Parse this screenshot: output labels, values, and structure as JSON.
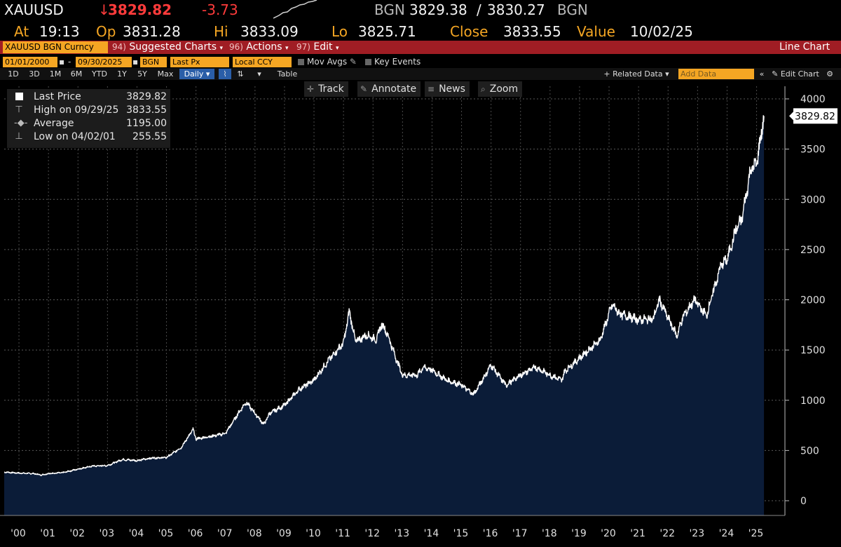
{
  "header": {
    "ticker": "XAUUSD",
    "last_arrow": "↓",
    "last": "3829.82",
    "change": "-3.73",
    "bgn_left": "BGN",
    "bid": "3829.38",
    "slash": "/",
    "ask": "3830.27",
    "bgn_right": "BGN",
    "at_label": "At",
    "at_value": "19:13",
    "op_label": "Op",
    "op_value": "3831.28",
    "hi_label": "Hi",
    "hi_value": "3833.09",
    "lo_label": "Lo",
    "lo_value": "3825.71",
    "close_label": "Close",
    "close_value": "3833.55",
    "value_label": "Value",
    "value_date": "10/02/25"
  },
  "menu": {
    "ticker_field": "XAUUSD BGN Curncy",
    "suggested_num": "94)",
    "suggested": "Suggested Charts",
    "actions_num": "96)",
    "actions": "Actions",
    "edit_num": "97)",
    "edit": "Edit",
    "chart_type": "Line Chart"
  },
  "controls": {
    "start_date": "01/01/2000",
    "dash": "-",
    "end_date": "09/30/2025",
    "source": "BGN",
    "field": "Last Px",
    "currency": "Local CCY",
    "mov_avgs": "Mov Avgs",
    "key_events": "Key Events"
  },
  "range": {
    "buttons": [
      "1D",
      "3D",
      "1M",
      "6M",
      "YTD",
      "1Y",
      "5Y",
      "Max"
    ],
    "frequency": "Daily ▾",
    "table": "Table",
    "related": "+ Related Data ▾",
    "add_data_placeholder": "Add Data",
    "edit_chart": "Edit Chart"
  },
  "tools": {
    "track": "Track",
    "annotate": "Annotate",
    "news": "News",
    "zoom": "Zoom"
  },
  "legend": {
    "last_label": "Last Price",
    "last_value": "3829.82",
    "high_label": "High on 09/29/25",
    "high_value": "3833.55",
    "avg_label": "Average",
    "avg_value": "1195.00",
    "low_label": "Low on 04/02/01",
    "low_value": "255.55"
  },
  "colors": {
    "amber": "#f5a623",
    "down_red": "#ff3b3b",
    "menu_red": "#a01d24",
    "area_fill": "#0b1c38",
    "line": "#ffffff"
  },
  "chart_data": {
    "type": "area",
    "grid": true,
    "ylim": [
      0,
      4000
    ],
    "y_ticks": [
      0,
      500,
      1000,
      1500,
      2000,
      2500,
      3000,
      3500,
      4000
    ],
    "x_ticks": [
      "'00",
      "'01",
      "'02",
      "'03",
      "'04",
      "'05",
      "'06",
      "'07",
      "'08",
      "'09",
      "'10",
      "'11",
      "'12",
      "'13",
      "'14",
      "'15",
      "'16",
      "'17",
      "'18",
      "'19",
      "'20",
      "'21",
      "'22",
      "'23",
      "'24",
      "'25"
    ],
    "last_label": "3829.82",
    "x": [
      2000.0,
      2000.5,
      2001.0,
      2001.25,
      2001.5,
      2002.0,
      2002.5,
      2003.0,
      2003.5,
      2004.0,
      2004.5,
      2005.0,
      2005.5,
      2006.0,
      2006.4,
      2006.5,
      2007.0,
      2007.5,
      2008.0,
      2008.2,
      2008.8,
      2009.0,
      2009.5,
      2010.0,
      2010.5,
      2011.0,
      2011.5,
      2011.7,
      2011.9,
      2012.0,
      2012.3,
      2012.6,
      2012.8,
      2013.0,
      2013.3,
      2013.5,
      2014.0,
      2014.2,
      2014.5,
      2015.0,
      2015.5,
      2015.9,
      2016.0,
      2016.5,
      2017.0,
      2017.5,
      2018.0,
      2018.5,
      2018.9,
      2019.0,
      2019.5,
      2020.0,
      2020.2,
      2020.6,
      2020.9,
      2021.0,
      2021.5,
      2022.0,
      2022.2,
      2022.8,
      2023.0,
      2023.4,
      2023.8,
      2024.0,
      2024.3,
      2024.5,
      2024.8,
      2025.0,
      2025.3,
      2025.5,
      2025.75
    ],
    "y": [
      285,
      275,
      270,
      256,
      270,
      280,
      315,
      345,
      350,
      410,
      400,
      425,
      430,
      530,
      710,
      615,
      640,
      670,
      900,
      980,
      760,
      870,
      950,
      1110,
      1200,
      1400,
      1570,
      1890,
      1590,
      1600,
      1650,
      1600,
      1760,
      1650,
      1400,
      1250,
      1250,
      1330,
      1300,
      1200,
      1150,
      1060,
      1100,
      1350,
      1150,
      1250,
      1330,
      1250,
      1200,
      1290,
      1420,
      1550,
      1600,
      1950,
      1850,
      1850,
      1800,
      1810,
      2000,
      1640,
      1830,
      2000,
      1840,
      2050,
      2350,
      2400,
      2700,
      2800,
      3300,
      3350,
      3829.82
    ]
  }
}
